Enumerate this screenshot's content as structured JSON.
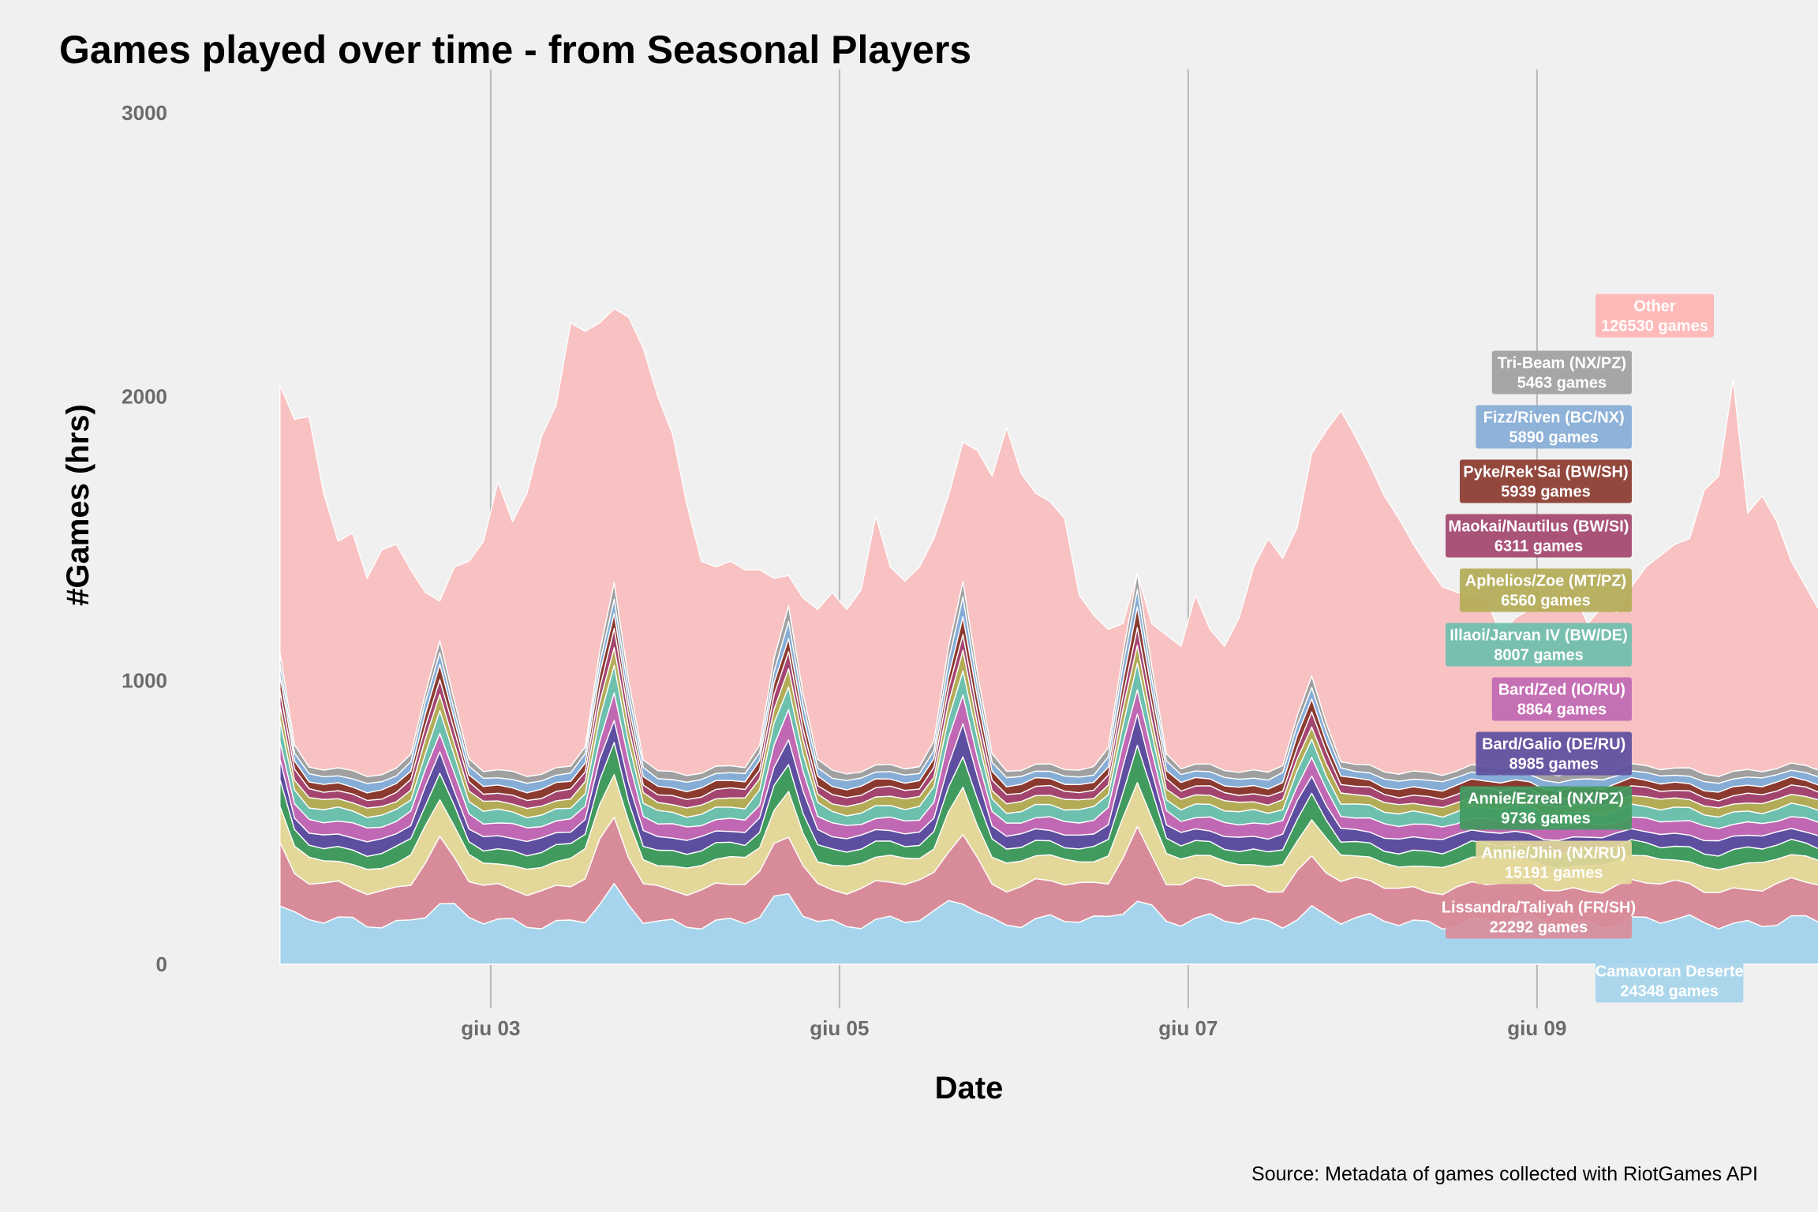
{
  "chart_data": {
    "type": "area",
    "stacked": true,
    "title": "Games played over time - from Seasonal Players",
    "xlabel": "Date",
    "ylabel": "#Games (hrs)",
    "caption": "Source: Metadata of games collected with RiotGames API",
    "x_start": "2024-06-01 19:00",
    "x_end": "2024-06-08 19:00",
    "x_step_hours": 2,
    "xlim": [
      "2024-06-01 15:00",
      "2024-06-09 15:00"
    ],
    "ylim": [
      -150,
      3000
    ],
    "x_ticks": [
      {
        "date": "2024-06-03",
        "label": "giu 03"
      },
      {
        "date": "2024-06-05",
        "label": "giu 05"
      },
      {
        "date": "2024-06-07",
        "label": "giu 07"
      },
      {
        "date": "2024-06-09",
        "label": "giu 09"
      }
    ],
    "y_ticks": [
      0,
      1000,
      2000,
      3000
    ],
    "gridlines": "vertical only",
    "total_curve": [
      2040,
      1920,
      1930,
      1660,
      1490,
      1520,
      1360,
      1460,
      1480,
      1390,
      1310,
      1280,
      1400,
      1420,
      1490,
      1700,
      1560,
      1660,
      1860,
      1970,
      2260,
      2230,
      2260,
      2310,
      2280,
      2170,
      2000,
      1870,
      1620,
      1420,
      1400,
      1420,
      1390,
      1390,
      1360,
      1370,
      1290,
      1250,
      1310,
      1250,
      1320,
      1580,
      1400,
      1350,
      1400,
      1500,
      1650,
      1840,
      1810,
      1720,
      1890,
      1730,
      1660,
      1630,
      1570,
      1300,
      1230,
      1180,
      1200,
      1260,
      1200,
      1160,
      1120,
      1300,
      1180,
      1120,
      1220,
      1400,
      1500,
      1430,
      1540,
      1800,
      1880,
      1950,
      1860,
      1760,
      1650,
      1570,
      1480,
      1400,
      1330,
      1310,
      1300,
      1290,
      1160,
      1220,
      1250,
      1290,
      1300,
      1310,
      1200,
      1260,
      1240,
      1330,
      1400,
      1440,
      1480,
      1500,
      1670,
      1720,
      2060,
      1590,
      1650,
      1560,
      1420,
      1330,
      1240,
      1270,
      1250,
      1280,
      1260,
      1200,
      1150,
      1030,
      1120,
      1080,
      1180,
      1270,
      1380,
      1700,
      1800,
      1910,
      1880,
      1760,
      1800,
      1650,
      1520,
      1420,
      1380,
      1280,
      1240,
      1260,
      1400,
      1320,
      1250,
      1180,
      1100,
      1080,
      1130,
      1230,
      1320,
      1380,
      1450,
      1680,
      1760,
      1880,
      2050,
      2000,
      2130,
      2150,
      1960,
      1480,
      1480,
      1490,
      1400,
      1520,
      1800,
      1650,
      1970,
      1720,
      1800,
      1660,
      1540,
      1300,
      1240,
      1120,
      1020,
      1000
    ],
    "shape_peaks": [
      {
        "day": 0.7,
        "amp": 1.0
      },
      {
        "day": 1.7,
        "amp": 0.55
      },
      {
        "day": 2.7,
        "amp": 0.8
      },
      {
        "day": 3.7,
        "amp": 0.75
      },
      {
        "day": 4.7,
        "amp": 0.9
      },
      {
        "day": 5.7,
        "amp": 0.9
      },
      {
        "day": 6.7,
        "amp": 0.4
      }
    ],
    "series": [
      {
        "name": "Camavoran Deserters",
        "total_games": 24348,
        "total_label": "24348 games",
        "color": "#a6d4ec",
        "base": 150,
        "swing": 110,
        "label_lines": [
          "Camavoran Deserte",
          "24348 games"
        ],
        "label_anchor": "left"
      },
      {
        "name": "Lissandra/Taliyah (FR/SH)",
        "total_games": 22292,
        "total_label": "22292 games",
        "color": "#d88c9a",
        "base": 125,
        "swing": 140,
        "label_lines": [
          "Lissandra/Taliyah (FR/SH)",
          "22292 games"
        ],
        "label_anchor": "right"
      },
      {
        "name": "Annie/Jhin (NX/RU)",
        "total_games": 15191,
        "total_label": "15191 games",
        "color": "#e3d79a",
        "base": 85,
        "swing": 95,
        "label_lines": [
          "Annie/Jhin (NX/RU)",
          "15191 games"
        ],
        "label_anchor": "right"
      },
      {
        "name": "Annie/Ezreal (NX/PZ)",
        "total_games": 9736,
        "total_label": "9736 games",
        "color": "#419a5e",
        "base": 50,
        "swing": 75,
        "label_lines": [
          "Annie/Ezreal (NX/PZ)",
          "9736 games"
        ],
        "label_anchor": "right"
      },
      {
        "name": "Bard/Galio (DE/RU)",
        "total_games": 8985,
        "total_label": "8985 games",
        "color": "#5d4ea0",
        "base": 45,
        "swing": 60,
        "label_lines": [
          "Bard/Galio (DE/RU)",
          "8985 games"
        ],
        "label_anchor": "right"
      },
      {
        "name": "Bard/Zed (IO/RU)",
        "total_games": 8864,
        "total_label": "8864 games",
        "color": "#c068b3",
        "base": 45,
        "swing": 60,
        "label_lines": [
          "Bard/Zed (IO/RU)",
          "8864 games"
        ],
        "label_anchor": "right"
      },
      {
        "name": "Illaoi/Jarvan IV (BW/DE)",
        "total_games": 8007,
        "total_label": "8007 games",
        "color": "#6dbfae",
        "base": 42,
        "swing": 55,
        "label_lines": [
          "Illaoi/Jarvan IV (BW/DE)",
          "8007 games"
        ],
        "label_anchor": "right"
      },
      {
        "name": "Aphelios/Zoe (MT/PZ)",
        "total_games": 6560,
        "total_label": "6560 games",
        "color": "#b3ab56",
        "base": 32,
        "swing": 42,
        "label_lines": [
          "Aphelios/Zoe (MT/PZ)",
          "6560 games"
        ],
        "label_anchor": "right"
      },
      {
        "name": "Maokai/Nautilus (BW/SI)",
        "total_games": 6311,
        "total_label": "6311 games",
        "color": "#a3456f",
        "base": 30,
        "swing": 40,
        "label_lines": [
          "Maokai/Nautilus (BW/SI)",
          "6311 games"
        ],
        "label_anchor": "right"
      },
      {
        "name": "Pyke/Rek'Sai (BW/SH)",
        "total_games": 5939,
        "total_label": "5939 games",
        "color": "#8b3a2f",
        "base": 28,
        "swing": 38,
        "label_lines": [
          "Pyke/Rek'Sai (BW/SH)",
          "5939 games"
        ],
        "label_anchor": "right"
      },
      {
        "name": "Fizz/Riven (BC/NX)",
        "total_games": 5890,
        "total_label": "5890 games",
        "color": "#86add6",
        "base": 28,
        "swing": 38,
        "label_lines": [
          "Fizz/Riven (BC/NX)",
          "5890 games"
        ],
        "label_anchor": "right"
      },
      {
        "name": "Tri-Beam (NX/PZ)",
        "total_games": 5463,
        "total_label": "5463 games",
        "color": "#a0a0a0",
        "base": 25,
        "swing": 35,
        "label_lines": [
          "Tri-Beam (NX/PZ)",
          "5463 games"
        ],
        "label_anchor": "right"
      },
      {
        "name": "Other",
        "total_games": 126530,
        "total_label": "126530 games",
        "color": "#f8c2c2",
        "label_lines": [
          "Other",
          "126530 games"
        ],
        "label_anchor": "left",
        "label_color": "#ffb4b4"
      }
    ]
  }
}
